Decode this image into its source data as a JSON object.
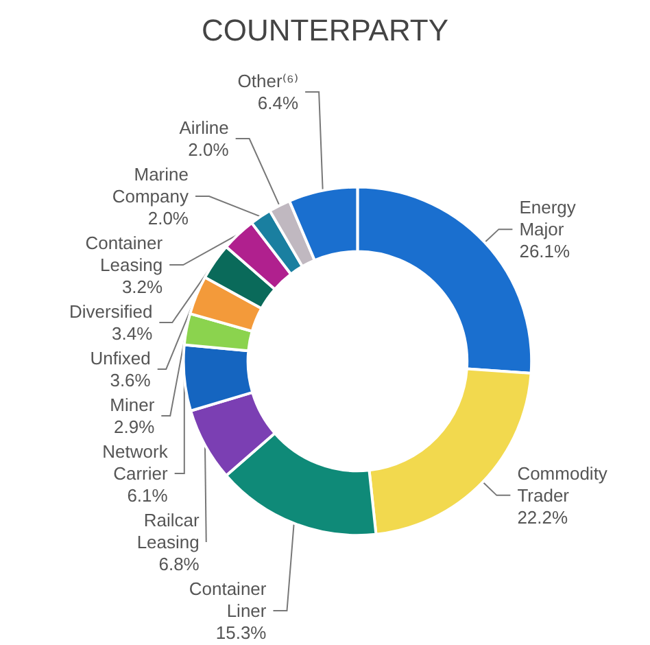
{
  "chart_data": {
    "type": "donut",
    "title": "COUNTERPARTY",
    "categories": [
      "Energy Major",
      "Commodity Trader",
      "Container Liner",
      "Railcar Leasing",
      "Network Carrier",
      "Miner",
      "Unfixed",
      "Diversified",
      "Container Leasing",
      "Marine Company",
      "Airline",
      "Other⁽⁶⁾"
    ],
    "values": [
      26.1,
      22.2,
      15.3,
      6.8,
      6.1,
      2.9,
      3.6,
      3.4,
      3.2,
      2.0,
      2.0,
      6.4
    ],
    "colors": [
      "#1a6fcf",
      "#f2d94e",
      "#0f8a78",
      "#7b3fb3",
      "#1565c0",
      "#8bd34e",
      "#f39a3a",
      "#0a6a5a",
      "#b0208e",
      "#1a7fa0",
      "#c0b8c0",
      "#1a6fcf"
    ],
    "value_labels": [
      "26.1%",
      "22.2%",
      "15.3%",
      "6.8%",
      "6.1%",
      "2.9%",
      "3.6%",
      "3.4%",
      "3.2%",
      "2.0%",
      "2.0%",
      "6.4%"
    ],
    "legend": false
  }
}
